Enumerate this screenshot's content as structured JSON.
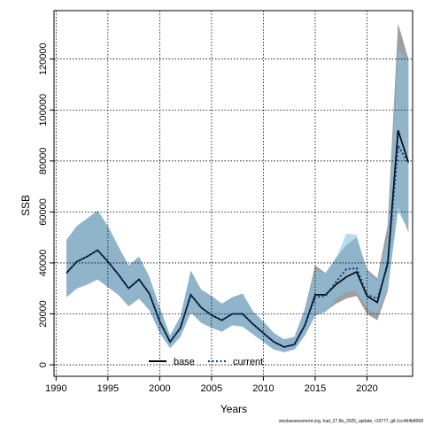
{
  "chart_data": {
    "type": "line",
    "xlabel": "Years",
    "ylabel": "SSB",
    "xlim": [
      1989.8,
      2024.4
    ],
    "ylim": [
      -4500,
      139000
    ],
    "x_ticks": [
      1990,
      1995,
      2000,
      2005,
      2010,
      2015,
      2020
    ],
    "y_ticks": [
      0,
      20000,
      40000,
      60000,
      80000,
      100000,
      120000
    ],
    "grid": true,
    "legend_position": "bottom-center",
    "footer": "stockassessment.org, had_27.6b_2025_update, r19777, git:1cc464b8068",
    "series": [
      {
        "name": "base",
        "color": "#000000",
        "band_color": "#7f7f7f",
        "linestyle": "solid",
        "x": [
          1991,
          1992,
          1993,
          1994,
          1995,
          1996,
          1997,
          1998,
          1999,
          2000,
          2001,
          2002,
          2003,
          2004,
          2005,
          2006,
          2007,
          2008,
          2009,
          2010,
          2011,
          2012,
          2013,
          2014,
          2015,
          2016,
          2017,
          2018,
          2019,
          2020,
          2021,
          2022,
          2023,
          2024
        ],
        "y": [
          36000,
          40500,
          42500,
          45000,
          40500,
          35500,
          30000,
          33500,
          28000,
          17000,
          9000,
          14500,
          27500,
          22500,
          19500,
          17500,
          20000,
          20000,
          16000,
          12500,
          9000,
          7000,
          8000,
          15500,
          27500,
          27500,
          31500,
          34500,
          36500,
          27000,
          24500,
          40000,
          92000,
          79500
        ],
        "lower": [
          26500,
          30000,
          31500,
          33500,
          30500,
          27500,
          23000,
          26000,
          21500,
          12500,
          6500,
          11000,
          20500,
          16500,
          14500,
          13000,
          15500,
          15000,
          12000,
          9000,
          6000,
          5000,
          6000,
          11500,
          19500,
          21000,
          24000,
          26000,
          27000,
          20000,
          17500,
          29000,
          62000,
          52000
        ],
        "upper": [
          49000,
          54500,
          57500,
          60500,
          54500,
          46500,
          39000,
          42500,
          34500,
          22500,
          11500,
          19000,
          37000,
          29500,
          27000,
          24000,
          26500,
          28000,
          21000,
          17000,
          12500,
          10000,
          11000,
          22000,
          39000,
          36000,
          42000,
          47000,
          50000,
          37500,
          34000,
          55000,
          134000,
          120000
        ]
      },
      {
        "name": "current",
        "color": "#0b3a7a",
        "band_color": "#87c3e8",
        "linestyle": "dotted",
        "x": [
          1991,
          1992,
          1993,
          1994,
          1995,
          1996,
          1997,
          1998,
          1999,
          2000,
          2001,
          2002,
          2003,
          2004,
          2005,
          2006,
          2007,
          2008,
          2009,
          2010,
          2011,
          2012,
          2013,
          2014,
          2015,
          2016,
          2017,
          2018,
          2019,
          2020,
          2021,
          2022,
          2023,
          2024
        ],
        "y": [
          36000,
          40500,
          42500,
          45000,
          40500,
          35500,
          30000,
          33500,
          28000,
          17000,
          9000,
          14500,
          27500,
          22500,
          19500,
          17500,
          20000,
          20000,
          16000,
          12500,
          9000,
          7000,
          8000,
          15500,
          26500,
          27000,
          32500,
          37500,
          38000,
          27500,
          26000,
          39000,
          86000,
          79000
        ],
        "lower": [
          26500,
          30000,
          31500,
          33500,
          30500,
          27500,
          23000,
          26000,
          21500,
          12500,
          6500,
          11000,
          20500,
          16500,
          14500,
          13000,
          15500,
          15000,
          12000,
          9000,
          6000,
          5000,
          6000,
          11500,
          19000,
          20500,
          26000,
          28500,
          29000,
          22000,
          20000,
          30000,
          60000,
          53000
        ],
        "upper": [
          49000,
          54500,
          57500,
          60500,
          54500,
          46500,
          39000,
          42500,
          34500,
          22500,
          11500,
          19000,
          37000,
          29500,
          27000,
          24000,
          26500,
          28000,
          21000,
          17000,
          12500,
          10000,
          11000,
          22000,
          37000,
          36000,
          41500,
          51500,
          51000,
          36500,
          33000,
          50500,
          124000,
          119000
        ]
      }
    ]
  }
}
